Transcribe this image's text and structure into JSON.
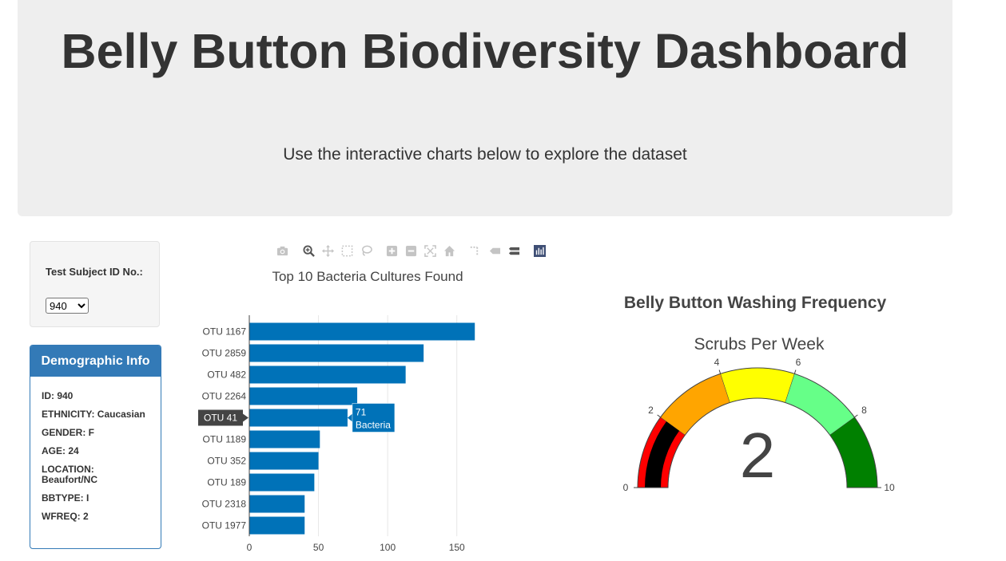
{
  "header": {
    "title": "Belly Button Biodiversity Dashboard",
    "subtitle": "Use the interactive charts below to explore the dataset"
  },
  "selector": {
    "label": "Test Subject ID No.:",
    "selected": "940"
  },
  "demographics": {
    "heading": "Demographic Info",
    "items": [
      "ID: 940",
      "ETHNICITY: Caucasian",
      "GENDER: F",
      "AGE: 24",
      "LOCATION: Beaufort/NC",
      "BBTYPE: I",
      "WFREQ: 2"
    ]
  },
  "modebar": {
    "icons": [
      "camera-icon",
      "zoom-icon",
      "pan-icon",
      "box-select-icon",
      "lasso-select-icon",
      "zoom-in-icon",
      "zoom-out-icon",
      "autoscale-icon",
      "reset-axes-icon",
      "spike-lines-icon",
      "hover-closest-icon",
      "hover-compare-icon",
      "plotly-logo-icon"
    ]
  },
  "chart_data": [
    {
      "type": "bar",
      "orientation": "horizontal",
      "title": "Top 10 Bacteria Cultures Found",
      "categories": [
        "OTU 1167",
        "OTU 2859",
        "OTU 482",
        "OTU 2264",
        "OTU 41",
        "OTU 1189",
        "OTU 352",
        "OTU 189",
        "OTU 2318",
        "OTU 1977"
      ],
      "values": [
        163,
        126,
        113,
        78,
        71,
        51,
        50,
        47,
        40,
        40
      ],
      "xlim": [
        0,
        175
      ],
      "xticks": [
        0,
        50,
        100,
        150
      ],
      "grid": true,
      "color": "#0072b8",
      "hover": {
        "category": "OTU 41",
        "value": 71,
        "label": "Bacteria",
        "text": "71",
        "text2": "Bacteria"
      }
    },
    {
      "type": "gauge",
      "title": "Belly Button Washing Frequency",
      "subtitle": "Scrubs Per Week",
      "value": 2,
      "value_text": "2",
      "range": [
        0,
        10
      ],
      "ticks": [
        0,
        2,
        4,
        6,
        8,
        10
      ],
      "steps": [
        {
          "range": [
            0,
            2
          ],
          "color": "#ff0000"
        },
        {
          "range": [
            2,
            4
          ],
          "color": "#ffa500"
        },
        {
          "range": [
            4,
            6
          ],
          "color": "#ffff00"
        },
        {
          "range": [
            6,
            8
          ],
          "color": "#66ff88"
        },
        {
          "range": [
            8,
            10
          ],
          "color": "#008000"
        }
      ],
      "bar_color": "#000000"
    }
  ]
}
